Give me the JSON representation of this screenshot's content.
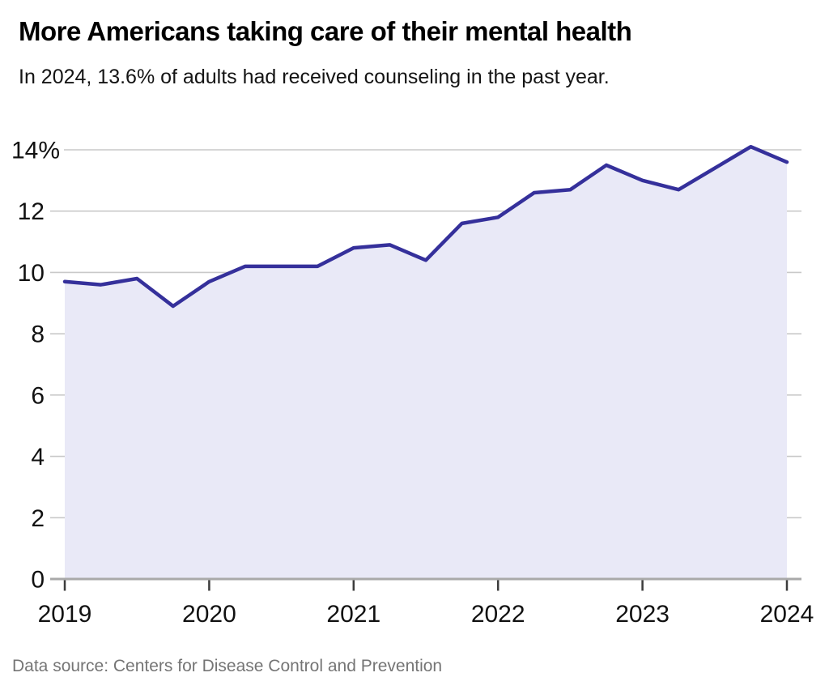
{
  "header": {
    "title": "More Americans taking care of their mental health",
    "subtitle": "In 2024, 13.6% of adults had received counseling in the past year."
  },
  "chart_data": {
    "type": "area",
    "title": "More Americans taking care of their mental health",
    "subtitle": "In 2024, 13.6% of adults had received counseling in the past year.",
    "x": [
      2019.0,
      2019.25,
      2019.5,
      2019.75,
      2020.0,
      2020.25,
      2020.5,
      2020.75,
      2021.0,
      2021.25,
      2021.5,
      2021.75,
      2022.0,
      2022.25,
      2022.5,
      2022.75,
      2023.0,
      2023.25,
      2023.5,
      2023.75,
      2024.0
    ],
    "values": [
      9.7,
      9.6,
      9.8,
      8.9,
      9.7,
      10.2,
      10.2,
      10.2,
      10.8,
      10.9,
      10.4,
      11.6,
      11.8,
      12.6,
      12.7,
      13.5,
      13.0,
      12.7,
      13.4,
      14.1,
      13.6
    ],
    "xlabel": "",
    "ylabel": "",
    "unit": "%",
    "ylim": [
      0,
      14
    ],
    "yticks": [
      0,
      2,
      4,
      6,
      8,
      10,
      12,
      14
    ],
    "ytick_labels": [
      "0",
      "2",
      "4",
      "6",
      "8",
      "10",
      "12",
      "14%"
    ],
    "xticks": [
      2019,
      2020,
      2021,
      2022,
      2023,
      2024
    ],
    "xtick_labels": [
      "2019",
      "2020",
      "2021",
      "2022",
      "2023",
      "2024"
    ],
    "grid": "horizontal",
    "legend": "none",
    "colors": {
      "line": "#35309b",
      "fill": "#e9e9f7",
      "grid": "#c9c9c9",
      "axis": "#a9a9a9",
      "tick": "#3c3c3c",
      "axis_label": "#111111"
    }
  },
  "footer": {
    "source": "Data source: Centers for Disease Control and Prevention"
  }
}
